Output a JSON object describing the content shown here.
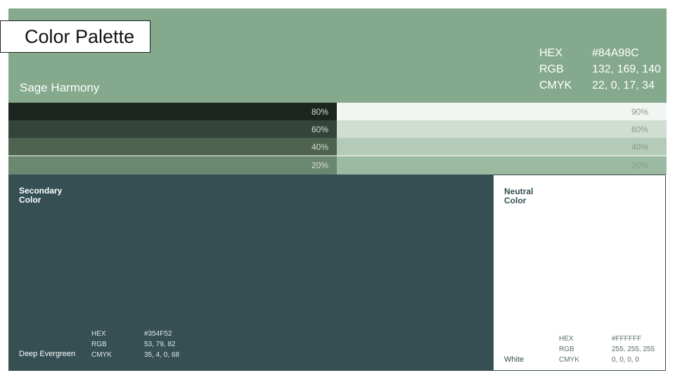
{
  "title": "Color Palette",
  "primary": {
    "name": "Sage Harmony",
    "color": "#84A98C",
    "specs": [
      {
        "label": "HEX",
        "value": "#84A98C"
      },
      {
        "label": "RGB",
        "value": "132, 169, 140"
      },
      {
        "label": "CMYK",
        "value": "22, 0, 17, 34"
      }
    ]
  },
  "shades": [
    {
      "label": "80%",
      "color": "#1E241F"
    },
    {
      "label": "60%",
      "color": "#33443A"
    },
    {
      "label": "40%",
      "color": "#4E6451"
    },
    {
      "label": "20%",
      "color": "#6A876F"
    }
  ],
  "tints": [
    {
      "label": "90%",
      "color": "#F2F6F3"
    },
    {
      "label": "60%",
      "color": "#CFDDD2"
    },
    {
      "label": "40%",
      "color": "#B5CBB9"
    },
    {
      "label": "20%",
      "color": "#9CBAA2"
    }
  ],
  "secondary": {
    "heading_line1": "Secondary",
    "heading_line2": "Color",
    "name": "Deep Evergreen",
    "color": "#354F52",
    "specs": [
      {
        "label": "HEX",
        "value": "#354F52"
      },
      {
        "label": "RGB",
        "value": "53, 79, 82"
      },
      {
        "label": "CMYK",
        "value": "35, 4, 0, 68"
      }
    ]
  },
  "neutral": {
    "heading_line1": "Neutral",
    "heading_line2": "Color",
    "name": "White",
    "color": "#FFFFFF",
    "specs": [
      {
        "label": "HEX",
        "value": "#FFFFFF"
      },
      {
        "label": "RGB",
        "value": "255, 255, 255"
      },
      {
        "label": "CMYK",
        "value": "0, 0, 0, 0"
      }
    ]
  }
}
